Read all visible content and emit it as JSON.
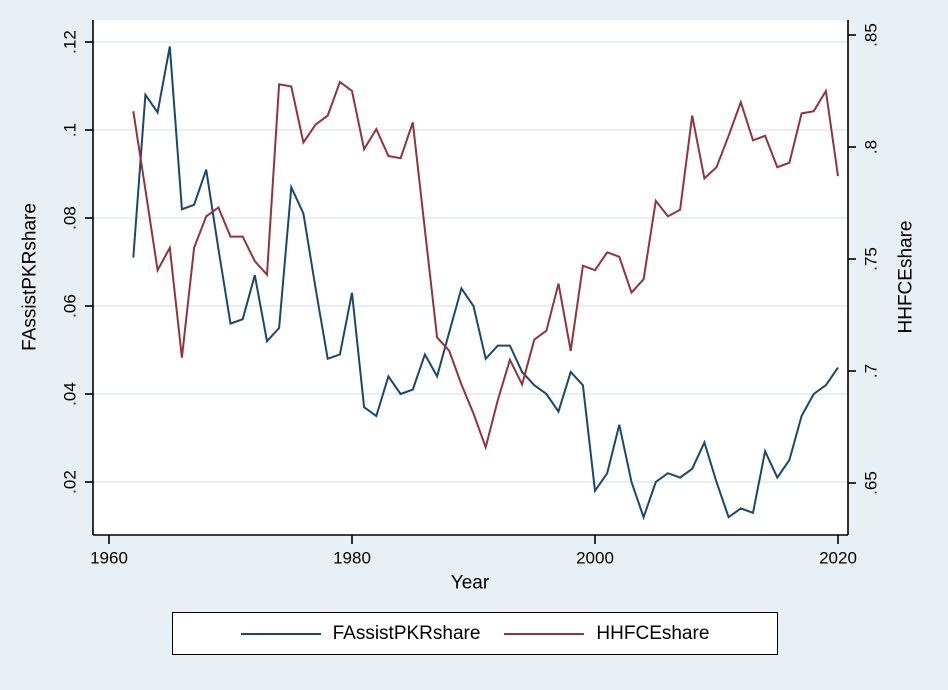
{
  "colors": {
    "background": "#e9f0f5",
    "plot_background": "#ffffff",
    "grid": "#e8eef3",
    "axis": "#000000",
    "series_fassist": "#1a476f",
    "series_hhfce": "#90353b"
  },
  "legend": {
    "items": [
      {
        "label": "FAssistPKRshare",
        "color": "#1a476f"
      },
      {
        "label": "HHFCEshare",
        "color": "#90353b"
      }
    ]
  },
  "chart_data": {
    "type": "line",
    "title": "",
    "grid": true,
    "legend_position": "bottom",
    "x_axis": {
      "label": "Year",
      "ticks": [
        {
          "label": "1960",
          "value": 1960
        },
        {
          "label": "1980",
          "value": 1980
        },
        {
          "label": "2000",
          "value": 2000
        },
        {
          "label": "2020",
          "value": 2020
        }
      ],
      "range": [
        1958.7,
        2020.8
      ]
    },
    "left_axis": {
      "label": "FAssistPKRshare",
      "ticks": [
        {
          "label": ".02",
          "value": 0.02
        },
        {
          "label": ".04",
          "value": 0.04
        },
        {
          "label": ".06",
          "value": 0.06
        },
        {
          "label": ".08",
          "value": 0.08
        },
        {
          "label": ".1",
          "value": 0.1
        },
        {
          "label": ".12",
          "value": 0.12
        }
      ],
      "range": [
        0.0085,
        0.125
      ]
    },
    "right_axis": {
      "label": "HHFCEshare",
      "ticks": [
        {
          "label": ".65",
          "value": 0.65
        },
        {
          "label": ".7",
          "value": 0.7
        },
        {
          "label": ".75",
          "value": 0.75
        },
        {
          "label": ".8",
          "value": 0.8
        },
        {
          "label": ".85",
          "value": 0.85
        }
      ],
      "range": [
        0.6435,
        0.8566
      ]
    },
    "x": [
      1962,
      1963,
      1964,
      1965,
      1966,
      1967,
      1968,
      1969,
      1970,
      1971,
      1972,
      1973,
      1974,
      1975,
      1976,
      1977,
      1978,
      1979,
      1980,
      1981,
      1982,
      1983,
      1984,
      1985,
      1986,
      1987,
      1988,
      1989,
      1990,
      1991,
      1992,
      1993,
      1994,
      1995,
      1996,
      1997,
      1998,
      1999,
      2000,
      2001,
      2002,
      2003,
      2004,
      2005,
      2006,
      2007,
      2008,
      2009,
      2010,
      2011,
      2012,
      2013,
      2014,
      2015,
      2016,
      2017,
      2018,
      2019,
      2020
    ],
    "series": [
      {
        "name": "FAssistPKRshare",
        "axis": "left",
        "color": "#1a476f",
        "values": [
          0.071,
          0.108,
          0.104,
          0.119,
          0.082,
          0.083,
          0.091,
          0.073,
          0.056,
          0.057,
          0.067,
          0.052,
          0.055,
          0.087,
          0.081,
          0.064,
          0.048,
          0.049,
          0.063,
          0.037,
          0.035,
          0.044,
          0.04,
          0.041,
          0.049,
          0.044,
          0.054,
          0.064,
          0.06,
          0.048,
          0.051,
          0.051,
          0.045,
          0.042,
          0.04,
          0.036,
          0.045,
          0.042,
          0.018,
          0.022,
          0.033,
          0.02,
          0.012,
          0.02,
          0.022,
          0.021,
          0.023,
          0.029,
          0.02,
          0.012,
          0.014,
          0.013,
          0.027,
          0.021,
          0.025,
          0.035,
          0.04,
          0.042,
          0.046
        ]
      },
      {
        "name": "HHFCEshare",
        "axis": "right",
        "color": "#90353b",
        "values": [
          0.816,
          0.781,
          0.745,
          0.755,
          0.706,
          0.755,
          0.769,
          0.773,
          0.76,
          0.76,
          0.749,
          0.743,
          0.828,
          0.827,
          0.802,
          0.81,
          0.814,
          0.829,
          0.825,
          0.799,
          0.808,
          0.796,
          0.795,
          0.811,
          0.763,
          0.715,
          0.709,
          0.694,
          0.681,
          0.666,
          0.687,
          0.705,
          0.694,
          0.714,
          0.718,
          0.739,
          0.709,
          0.747,
          0.745,
          0.753,
          0.751,
          0.735,
          0.741,
          0.776,
          0.769,
          0.772,
          0.814,
          0.786,
          0.791,
          0.805,
          0.82,
          0.803,
          0.805,
          0.791,
          0.793,
          0.815,
          0.816,
          0.825,
          0.787
        ]
      }
    ]
  }
}
